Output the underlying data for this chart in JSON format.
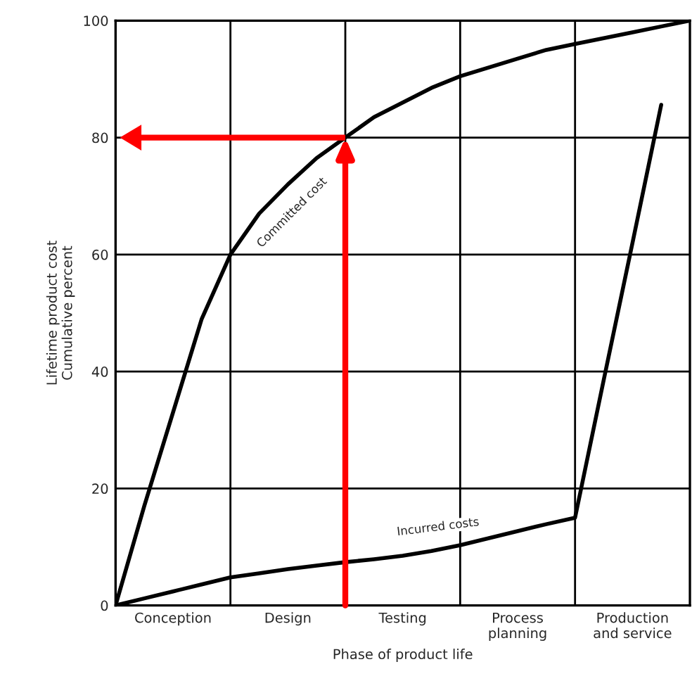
{
  "chart_data": {
    "type": "line",
    "xlabel": "Phase of product life",
    "ylabel": "Lifetime product cost\nCumulative percent",
    "categories": [
      null,
      null,
      "Conception",
      null,
      null,
      null,
      "Design",
      null,
      null,
      null,
      "Testing",
      null,
      null,
      null,
      "Process\nplanning",
      null,
      null,
      null,
      "Production\nand service",
      null,
      null
    ],
    "ylim": [
      0,
      100
    ],
    "yticks": [
      0,
      20,
      40,
      60,
      80,
      100
    ],
    "grid": true,
    "marker": "none",
    "line_style": "solid",
    "series": [
      {
        "color": "#000000",
        "values": [
          0,
          17,
          33,
          49,
          60,
          67,
          72,
          76.5,
          80,
          83.5,
          86,
          88.5,
          90.5,
          92,
          93.5,
          95,
          96,
          97,
          98,
          99,
          100
        ]
      },
      {
        "color": "#000000",
        "values": [
          0,
          1.2,
          2.4,
          3.6,
          4.8,
          5.5,
          6.2,
          6.8,
          7.4,
          7.9,
          8.5,
          9.3,
          10.3,
          11.5,
          12.7,
          13.9,
          15,
          38.6,
          62,
          85.6,
          null
        ]
      }
    ],
    "ref_lines": [
      {
        "axis": "y",
        "value": 80,
        "color": "#ff0000"
      }
    ],
    "annotations": [
      "Committed cost",
      "Incurred costs"
    ]
  }
}
